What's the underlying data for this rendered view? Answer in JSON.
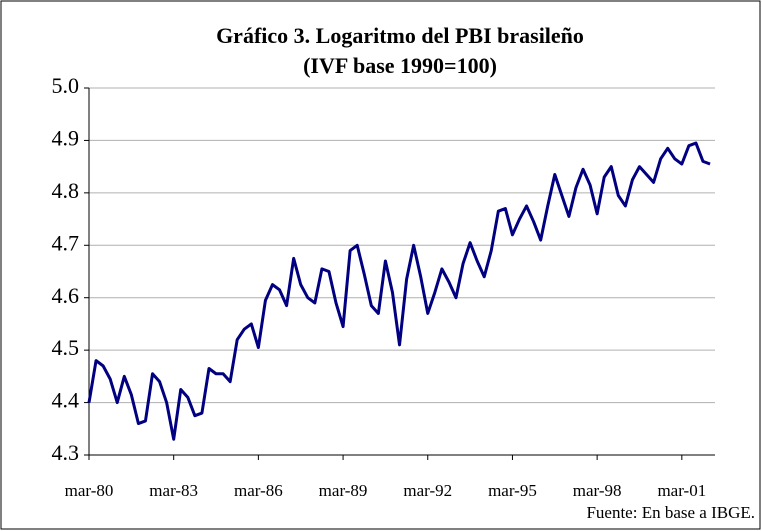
{
  "chart_data": {
    "type": "line",
    "title": "Gráfico 3. Logaritmo del PBI  brasileño",
    "subtitle": "(IVF base 1990=100)",
    "source": "Fuente: En base a IBGE.",
    "categories": [
      "mar-80",
      null,
      null,
      null,
      null,
      null,
      null,
      null,
      null,
      null,
      null,
      null,
      "mar-83",
      null,
      null,
      null,
      null,
      null,
      null,
      null,
      null,
      null,
      null,
      null,
      "mar-86",
      null,
      null,
      null,
      null,
      null,
      null,
      null,
      null,
      null,
      null,
      null,
      "mar-89",
      null,
      null,
      null,
      null,
      null,
      null,
      null,
      null,
      null,
      null,
      null,
      "mar-92",
      null,
      null,
      null,
      null,
      null,
      null,
      null,
      null,
      null,
      null,
      null,
      "mar-95",
      null,
      null,
      null,
      null,
      null,
      null,
      null,
      null,
      null,
      null,
      null,
      "mar-98",
      null,
      null,
      null,
      null,
      null,
      null,
      null,
      null,
      null,
      null,
      null,
      "mar-01",
      null,
      null,
      null,
      null
    ],
    "series": [
      {
        "name": "PBI",
        "color": "#000080",
        "values": [
          4.4,
          4.48,
          4.47,
          4.445,
          4.4,
          4.45,
          4.415,
          4.36,
          4.365,
          4.455,
          4.44,
          4.4,
          4.33,
          4.425,
          4.41,
          4.375,
          4.38,
          4.465,
          4.455,
          4.455,
          4.44,
          4.52,
          4.54,
          4.55,
          4.505,
          4.595,
          4.625,
          4.615,
          4.585,
          4.675,
          4.625,
          4.6,
          4.59,
          4.655,
          4.65,
          4.59,
          4.545,
          4.69,
          4.7,
          4.645,
          4.585,
          4.57,
          4.67,
          4.61,
          4.51,
          4.635,
          4.7,
          4.64,
          4.57,
          4.61,
          4.655,
          4.63,
          4.6,
          4.665,
          4.705,
          4.67,
          4.64,
          4.69,
          4.765,
          4.77,
          4.72,
          4.75,
          4.775,
          4.745,
          4.71,
          4.775,
          4.835,
          4.795,
          4.755,
          4.81,
          4.845,
          4.815,
          4.76,
          4.83,
          4.85,
          4.795,
          4.775,
          4.825,
          4.85,
          4.835,
          4.82,
          4.865,
          4.885,
          4.865,
          4.855,
          4.89,
          4.895,
          4.86,
          4.855
        ]
      }
    ],
    "ylim": [
      4.3,
      5.0
    ],
    "yticks": [
      4.3,
      4.4,
      4.5,
      4.6,
      4.7,
      4.8,
      4.9,
      {
        "value": 5.0,
        "label": "5.0"
      }
    ],
    "grid": true,
    "legend": false
  }
}
